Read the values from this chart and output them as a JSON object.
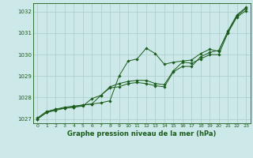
{
  "background_color": "#cce8e8",
  "grid_color": "#aacccc",
  "line_color": "#1a5c1a",
  "marker": "D",
  "marker_size": 1.8,
  "xlabel": "Graphe pression niveau de la mer (hPa)",
  "ylim": [
    1026.8,
    1032.4
  ],
  "xlim": [
    -0.5,
    23.5
  ],
  "yticks": [
    1027,
    1028,
    1029,
    1030,
    1031,
    1032
  ],
  "xticks": [
    0,
    1,
    2,
    3,
    4,
    5,
    6,
    7,
    8,
    9,
    10,
    11,
    12,
    13,
    14,
    15,
    16,
    17,
    18,
    19,
    20,
    21,
    22,
    23
  ],
  "series": [
    [
      1027.05,
      1027.35,
      1027.45,
      1027.55,
      1027.6,
      1027.65,
      1027.7,
      1027.75,
      1027.85,
      1029.0,
      1029.7,
      1029.8,
      1030.3,
      1030.05,
      1029.55,
      1029.65,
      1029.7,
      1029.75,
      1030.05,
      1030.25,
      1030.15,
      1031.1,
      1031.85,
      1032.2
    ],
    [
      1027.0,
      1027.3,
      1027.45,
      1027.5,
      1027.55,
      1027.65,
      1027.7,
      1028.1,
      1028.5,
      1028.65,
      1028.75,
      1028.8,
      1028.8,
      1028.65,
      1028.6,
      1029.25,
      1029.65,
      1029.6,
      1029.8,
      1030.0,
      1030.0,
      1031.0,
      1031.75,
      1032.05
    ],
    [
      1027.0,
      1027.3,
      1027.4,
      1027.5,
      1027.55,
      1027.6,
      1027.95,
      1028.1,
      1028.45,
      1028.5,
      1028.65,
      1028.7,
      1028.65,
      1028.55,
      1028.5,
      1029.2,
      1029.45,
      1029.45,
      1029.9,
      1030.1,
      1030.2,
      1031.05,
      1031.8,
      1032.15
    ]
  ]
}
